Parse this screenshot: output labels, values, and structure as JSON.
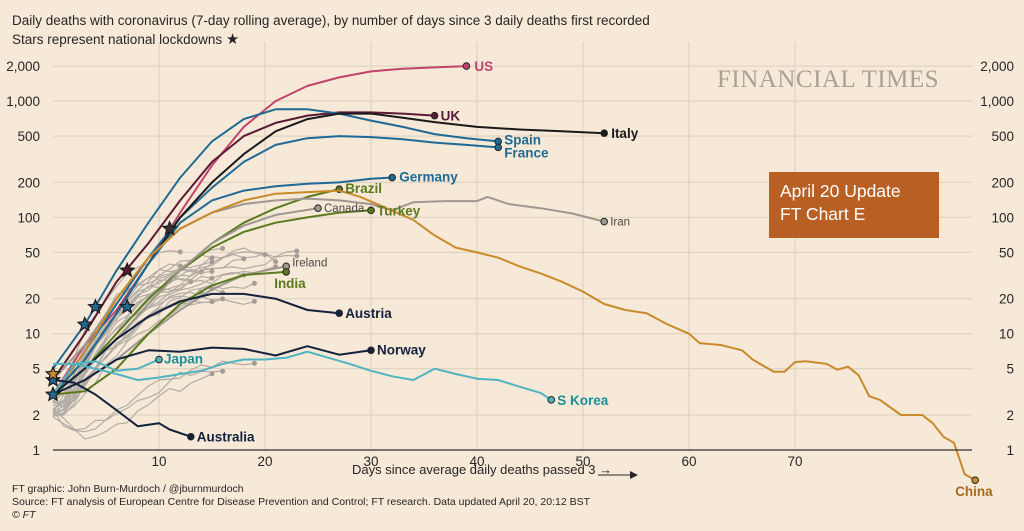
{
  "title": {
    "line1": "Daily deaths with coronavirus (7-day rolling average), by number of days since 3 daily deaths first recorded",
    "line2": "Stars represent national lockdowns",
    "star_glyph": "★"
  },
  "logo": "FINANCIAL TIMES",
  "update_box": {
    "line1": "April 20 Update",
    "line2": "FT Chart E",
    "color": "#b85f23"
  },
  "footer": {
    "credit": "FT graphic: John Burn-Murdoch / @jburnmurdoch",
    "source": "Source: FT analysis of European Centre for Disease Prevention and Control; FT research. Data updated April 20, 20:12 BST",
    "copyright": "© FT"
  },
  "chart_data": {
    "type": "line",
    "title": "Daily deaths with coronavirus (7-day rolling average), by number of days since 3 daily deaths first recorded",
    "xlabel": "Days since average daily deaths passed 3 →",
    "ylabel": "",
    "yscale": "log",
    "xlim": [
      0,
      88
    ],
    "ylim": [
      1,
      2500
    ],
    "x_ticks": [
      10,
      20,
      30,
      40,
      50,
      60,
      70
    ],
    "y_ticks": [
      1,
      2,
      5,
      10,
      20,
      50,
      100,
      200,
      500,
      1000,
      2000
    ],
    "y_tick_labels": [
      "1",
      "2",
      "5",
      "10",
      "20",
      "50",
      "100",
      "200",
      "500",
      "1,000",
      "2,000"
    ],
    "grid": true,
    "series": [
      {
        "name": "US",
        "color": "#c2436b",
        "label_color": "#c2436b",
        "bold": true,
        "x": [
          0,
          3,
          6,
          9,
          12,
          15,
          18,
          21,
          24,
          27,
          30,
          33,
          36,
          39
        ],
        "y": [
          3,
          8,
          16,
          40,
          110,
          280,
          600,
          1000,
          1350,
          1600,
          1800,
          1900,
          1950,
          2000
        ]
      },
      {
        "name": "UK",
        "color": "#5a1a33",
        "label_color": "#5a1a33",
        "bold": true,
        "x": [
          0,
          3,
          6,
          9,
          12,
          15,
          18,
          21,
          24,
          27,
          30,
          33,
          36
        ],
        "y": [
          4,
          10,
          28,
          60,
          140,
          300,
          500,
          650,
          750,
          800,
          800,
          780,
          750
        ]
      },
      {
        "name": "Spain",
        "color": "#1f6a94",
        "label_color": "#1f6a94",
        "bold": true,
        "x": [
          0,
          3,
          6,
          9,
          12,
          15,
          18,
          21,
          24,
          27,
          30,
          33,
          36,
          39,
          42
        ],
        "y": [
          5,
          12,
          35,
          90,
          220,
          450,
          700,
          850,
          850,
          780,
          680,
          600,
          520,
          480,
          450
        ]
      },
      {
        "name": "France",
        "color": "#1f6a94",
        "label_color": "#1f6a94",
        "bold": true,
        "x": [
          0,
          3,
          6,
          9,
          12,
          15,
          18,
          21,
          24,
          27,
          30,
          33,
          36,
          39,
          42
        ],
        "y": [
          3,
          7,
          18,
          45,
          100,
          180,
          300,
          420,
          480,
          500,
          490,
          470,
          440,
          420,
          400
        ]
      },
      {
        "name": "Italy",
        "color": "#1a1a1a",
        "label_color": "#1a1a1a",
        "bold": true,
        "x": [
          0,
          3,
          6,
          9,
          12,
          15,
          18,
          21,
          24,
          27,
          30,
          33,
          36,
          40,
          44,
          48,
          52
        ],
        "y": [
          3,
          6,
          15,
          40,
          100,
          200,
          350,
          550,
          700,
          780,
          780,
          720,
          660,
          600,
          570,
          550,
          530
        ]
      },
      {
        "name": "Germany",
        "color": "#1f6a94",
        "label_color": "#1f6a94",
        "bold": true,
        "x": [
          0,
          3,
          6,
          9,
          12,
          15,
          18,
          21,
          24,
          27,
          30,
          32
        ],
        "y": [
          3,
          6,
          15,
          40,
          90,
          140,
          170,
          185,
          195,
          200,
          215,
          220
        ]
      },
      {
        "name": "Brazil",
        "color": "#5b7a1d",
        "label_color": "#5b7a1d",
        "bold": true,
        "x": [
          0,
          3,
          6,
          9,
          12,
          15,
          18,
          21,
          24,
          27
        ],
        "y": [
          3,
          5,
          9,
          18,
          35,
          60,
          90,
          120,
          150,
          175
        ]
      },
      {
        "name": "Turkey",
        "color": "#5b7a1d",
        "label_color": "#5b7a1d",
        "bold": true,
        "x": [
          0,
          3,
          6,
          9,
          12,
          15,
          18,
          21,
          24,
          27,
          30
        ],
        "y": [
          3,
          5,
          10,
          20,
          35,
          55,
          75,
          90,
          100,
          110,
          115
        ]
      },
      {
        "name": "Canada",
        "color": "#9e9891",
        "label_color": "#4d4845",
        "bold": false,
        "x": [
          0,
          3,
          6,
          9,
          12,
          15,
          18,
          21,
          25
        ],
        "y": [
          3,
          5,
          9,
          18,
          35,
          60,
          85,
          105,
          120
        ]
      },
      {
        "name": "Iran",
        "color": "#9e9891",
        "label_color": "#4d4845",
        "bold": false,
        "x": [
          0,
          3,
          6,
          9,
          12,
          15,
          18,
          21,
          24,
          27,
          30,
          32,
          34,
          37,
          40,
          41,
          43,
          46,
          49,
          52
        ],
        "y": [
          4,
          8,
          20,
          45,
          80,
          110,
          130,
          140,
          145,
          140,
          130,
          115,
          135,
          138,
          138,
          150,
          130,
          120,
          108,
          92
        ]
      },
      {
        "name": "China",
        "color": "#c98a2b",
        "label_color": "#a76b17",
        "bold": true,
        "x": [
          0,
          3,
          6,
          9,
          12,
          15,
          18,
          21,
          24,
          27,
          29,
          31,
          34,
          36,
          38,
          40,
          42,
          44,
          46,
          48,
          50,
          52,
          54,
          56,
          58,
          60,
          61,
          63,
          65,
          66,
          68,
          69,
          70,
          71,
          73,
          74,
          75,
          76,
          77,
          78,
          80,
          81,
          82,
          83,
          84,
          85,
          86,
          87
        ],
        "y": [
          3,
          7,
          20,
          45,
          80,
          110,
          140,
          160,
          165,
          170,
          150,
          125,
          95,
          70,
          55,
          50,
          45,
          38,
          33,
          28,
          23,
          18,
          16,
          15,
          12,
          10,
          8.3,
          8,
          7.2,
          6,
          4.7,
          4.7,
          5.7,
          5.8,
          5.5,
          4.9,
          5.2,
          4.4,
          2.9,
          2.7,
          2,
          2,
          2,
          1.7,
          1.3,
          1.15,
          0.62,
          0.55
        ]
      },
      {
        "name": "Ireland",
        "color": "#9e9891",
        "label_color": "#4d4845",
        "bold": false,
        "x": [
          0,
          3,
          6,
          9,
          12,
          15,
          18,
          22
        ],
        "y": [
          3,
          4,
          6,
          10,
          16,
          24,
          32,
          38
        ]
      },
      {
        "name": "India",
        "color": "#5b7a1d",
        "label_color": "#5b7a1d",
        "bold": true,
        "x": [
          0,
          3,
          6,
          9,
          12,
          15,
          18,
          22
        ],
        "y": [
          3,
          3.2,
          5,
          10,
          18,
          26,
          32,
          34
        ]
      },
      {
        "name": "Austria",
        "color": "#14213d",
        "label_color": "#14213d",
        "bold": true,
        "x": [
          0,
          3,
          6,
          9,
          12,
          15,
          18,
          21,
          24,
          27
        ],
        "y": [
          3,
          5,
          9,
          14,
          19,
          22,
          22,
          20,
          16,
          15
        ]
      },
      {
        "name": "Norway",
        "color": "#14213d",
        "label_color": "#14213d",
        "bold": true,
        "x": [
          0,
          3,
          6,
          9,
          12,
          15,
          18,
          21,
          24,
          27,
          30
        ],
        "y": [
          3,
          4,
          6,
          7.2,
          7,
          7.6,
          7.4,
          6.5,
          7.8,
          6.6,
          7.2
        ]
      },
      {
        "name": "Japan",
        "color": "#4fb3c2",
        "label_color": "#1b8e9a",
        "bold": true,
        "x": [
          0,
          2,
          4,
          6,
          8,
          10
        ],
        "y": [
          3,
          5.5,
          5.8,
          4.8,
          5.0,
          6.0
        ]
      },
      {
        "name": "S Korea",
        "color": "#4fb3c2",
        "label_color": "#1b8e9a",
        "bold": true,
        "x": [
          0,
          2,
          4,
          6,
          8,
          10,
          12,
          14,
          16,
          18,
          20,
          22,
          24,
          26,
          28,
          30,
          32,
          34,
          36,
          38,
          40,
          42,
          44,
          46,
          47
        ],
        "y": [
          5.5,
          5.5,
          5,
          4.5,
          4,
          4.2,
          4.5,
          4.8,
          5.5,
          6,
          6,
          6.2,
          7,
          6.2,
          5.5,
          4.8,
          4.3,
          4,
          5,
          4.5,
          4.1,
          4,
          3.5,
          3.1,
          2.7
        ]
      },
      {
        "name": "Australia",
        "color": "#14213d",
        "label_color": "#14213d",
        "bold": true,
        "x": [
          0,
          2,
          4,
          6,
          8,
          10,
          11,
          13
        ],
        "y": [
          4,
          3.8,
          3,
          2.2,
          1.6,
          1.7,
          1.5,
          1.3
        ]
      }
    ],
    "lockdown_stars": [
      {
        "country": "Italy",
        "x": 0,
        "y": 3,
        "color": "#1f6a94"
      },
      {
        "country": "Spain",
        "x": 0,
        "y": 4,
        "color": "#1f6a94"
      },
      {
        "country": "China",
        "x": 0,
        "y": 4.5,
        "color": "#c98a2b"
      },
      {
        "country": "France",
        "x": 3,
        "y": 12,
        "color": "#1f6a94"
      },
      {
        "country": "Germany",
        "x": 4,
        "y": 17,
        "color": "#1f6a94"
      },
      {
        "country": "UK",
        "x": 7,
        "y": 35,
        "color": "#5a1a33"
      },
      {
        "country": "US",
        "x": 7,
        "y": 17,
        "color": "#1f6a94"
      },
      {
        "country": "Italy-2",
        "x": 11,
        "y": 80,
        "color": "#333333"
      }
    ],
    "grey_background_series_note": "many unlabeled grey lines for other countries"
  }
}
